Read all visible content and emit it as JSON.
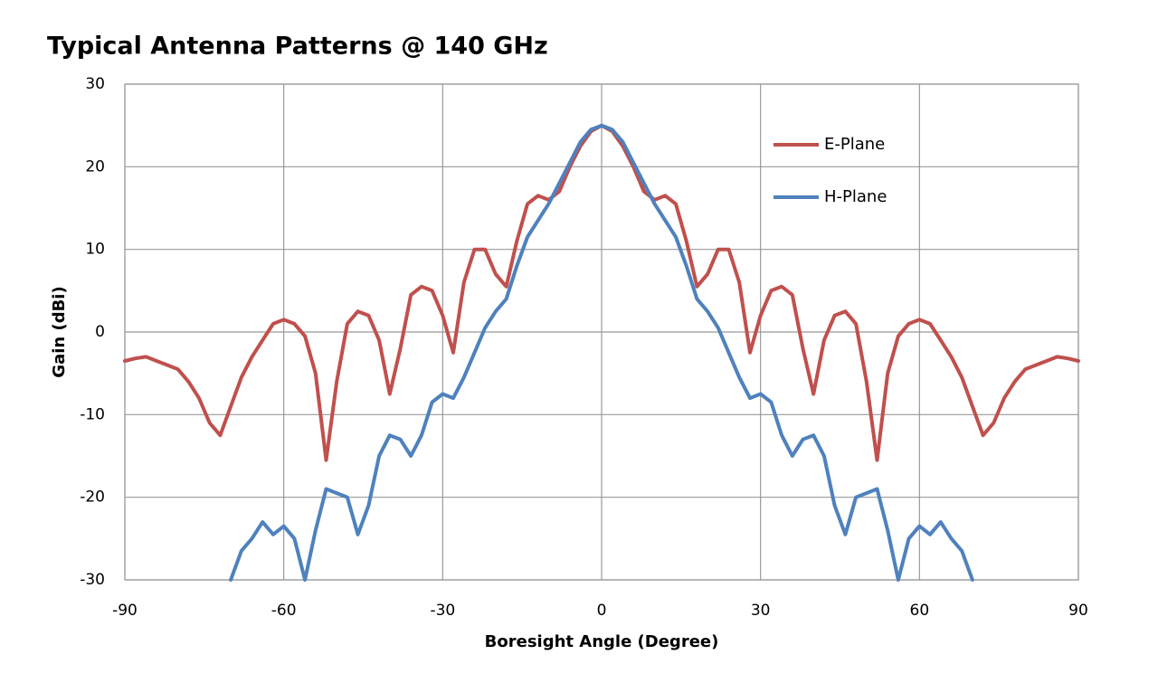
{
  "chart_data": {
    "type": "line",
    "title": "Typical Antenna Patterns @ 140 GHz",
    "x_label": "Boresight Angle (Degree)",
    "y_label": "Gain (dBi)",
    "x": [
      -90,
      -88,
      -86,
      -84,
      -82,
      -80,
      -78,
      -76,
      -74,
      -72,
      -70,
      -68,
      -66,
      -64,
      -62,
      -60,
      -58,
      -56,
      -54,
      -52,
      -50,
      -48,
      -46,
      -44,
      -42,
      -40,
      -38,
      -36,
      -34,
      -32,
      -30,
      -28,
      -26,
      -24,
      -22,
      -20,
      -18,
      -16,
      -14,
      -12,
      -10,
      -8,
      -6,
      -4,
      -2,
      0,
      2,
      4,
      6,
      8,
      10,
      12,
      14,
      16,
      18,
      20,
      22,
      24,
      26,
      28,
      30,
      32,
      34,
      36,
      38,
      40,
      42,
      44,
      46,
      48,
      50,
      52,
      54,
      56,
      58,
      60,
      62,
      64,
      66,
      68,
      70,
      72,
      74,
      76,
      78,
      80,
      82,
      84,
      86,
      88,
      90
    ],
    "series": [
      {
        "name": "E-Plane",
        "color": "#c0504d",
        "values": [
          -3.5,
          -3.2,
          -3,
          -3.5,
          -4,
          -4.5,
          -6,
          -8,
          -11,
          -12.5,
          -9,
          -5.5,
          -3,
          -1,
          1,
          1.5,
          1,
          -0.5,
          -5,
          -15.5,
          -6,
          1,
          2.5,
          2,
          -1,
          -7.5,
          -2,
          4.5,
          5.5,
          5,
          2,
          -2.5,
          6,
          10,
          10,
          7,
          5.5,
          11,
          15.5,
          16.5,
          16,
          17,
          20,
          22.5,
          24.3,
          25,
          24.3,
          22.5,
          20,
          17,
          16,
          16.5,
          15.5,
          11,
          5.5,
          7,
          10,
          10,
          6,
          -2.5,
          2,
          5,
          5.5,
          4.5,
          -2,
          -7.5,
          -1,
          2,
          2.5,
          1,
          -6,
          -15.5,
          -5,
          -0.5,
          1,
          1.5,
          1,
          -1,
          -3,
          -5.5,
          -9,
          -12.5,
          -11,
          -8,
          -6,
          -4.5,
          -4,
          -3.5,
          -3,
          -3.2,
          -3.5
        ]
      },
      {
        "name": "H-Plane",
        "color": "#4f81bd",
        "values": [
          null,
          null,
          null,
          null,
          null,
          null,
          null,
          null,
          null,
          null,
          -30,
          -26.5,
          -25,
          -23,
          -24.5,
          -23.5,
          -25,
          -30,
          -24,
          -19,
          -19.5,
          -20,
          -24.5,
          -21,
          -15,
          -12.5,
          -13,
          -15,
          -12.5,
          -8.5,
          -7.5,
          -8,
          -5.5,
          -2.5,
          0.5,
          2.5,
          4,
          8,
          11.5,
          13.5,
          15.5,
          18,
          20.5,
          23,
          24.5,
          25,
          24.5,
          23,
          20.5,
          18,
          15.5,
          13.5,
          11.5,
          8,
          4,
          2.5,
          0.5,
          -2.5,
          -5.5,
          -8,
          -7.5,
          -8.5,
          -12.5,
          -15,
          -13,
          -12.5,
          -15,
          -21,
          -24.5,
          -20,
          -19.5,
          -19,
          -24,
          -30,
          -25,
          -23.5,
          -24.5,
          -23,
          -25,
          -26.5,
          -30,
          null,
          null,
          null,
          null,
          null,
          null,
          null,
          null,
          null,
          null
        ]
      }
    ],
    "xlim": [
      -90,
      90
    ],
    "xticks": [
      -90,
      -60,
      -30,
      0,
      30,
      60,
      90
    ],
    "ylim": [
      -30,
      30
    ],
    "yticks": [
      -30,
      -20,
      -10,
      0,
      10,
      20,
      30
    ],
    "grid": true,
    "legend": "upper-right"
  }
}
